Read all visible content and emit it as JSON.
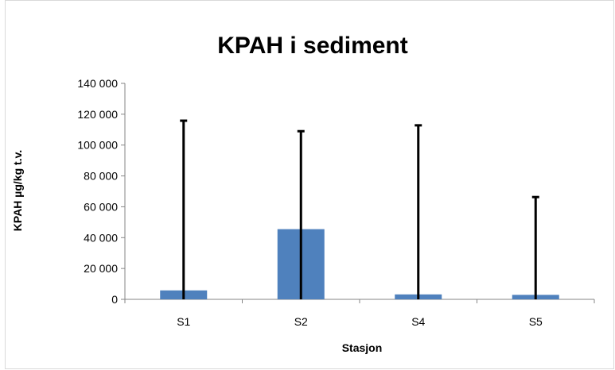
{
  "chart_data": {
    "type": "bar",
    "title": "KPAH i sediment",
    "xlabel": "Stasjon",
    "ylabel": "KPAH µg/kg t.v.",
    "categories": [
      "S1",
      "S2",
      "S4",
      "S5"
    ],
    "values": [
      5800,
      45500,
      3200,
      2900
    ],
    "error_bars_upper": [
      115800,
      109000,
      112800,
      66300
    ],
    "ylim": [
      0,
      140000
    ],
    "yticks": [
      0,
      20000,
      40000,
      60000,
      80000,
      100000,
      120000,
      140000
    ],
    "ytick_labels": [
      "0",
      "20 000",
      "40 000",
      "60 000",
      "80 000",
      "100 000",
      "120 000",
      "140 000"
    ],
    "grid": false,
    "legend": "none",
    "colors": {
      "bar": "#4f81bd",
      "error_bar": "#000000",
      "axis": "#868686"
    }
  }
}
